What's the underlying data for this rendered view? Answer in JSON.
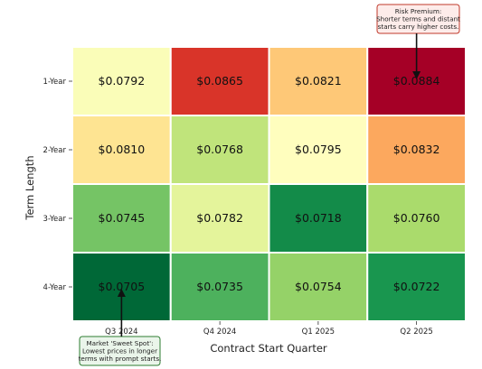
{
  "chart_data": {
    "type": "heatmap",
    "xlabel": "Contract Start Quarter",
    "ylabel": "Term Length",
    "x_categories": [
      "Q3 2024",
      "Q4 2024",
      "Q1 2025",
      "Q2 2025"
    ],
    "y_categories": [
      "1-Year",
      "2-Year",
      "3-Year",
      "4-Year"
    ],
    "values": [
      [
        0.0792,
        0.0865,
        0.0821,
        0.0884
      ],
      [
        0.081,
        0.0768,
        0.0795,
        0.0832
      ],
      [
        0.0745,
        0.0782,
        0.0718,
        0.076
      ],
      [
        0.0705,
        0.0735,
        0.0754,
        0.0722
      ]
    ],
    "value_labels": [
      [
        "$0.0792",
        "$0.0865",
        "$0.0821",
        "$0.0884"
      ],
      [
        "$0.0810",
        "$0.0768",
        "$0.0795",
        "$0.0832"
      ],
      [
        "$0.0745",
        "$0.0782",
        "$0.0718",
        "$0.0760"
      ],
      [
        "$0.0705",
        "$0.0735",
        "$0.0754",
        "$0.0722"
      ]
    ],
    "colormap": "RdYlGn_r",
    "colormap_stops": [
      "#006837",
      "#1a9850",
      "#66bd63",
      "#a6d96a",
      "#d9ef8b",
      "#ffffbf",
      "#fee08b",
      "#fdae61",
      "#f46d43",
      "#d73027",
      "#a50026"
    ],
    "value_range": [
      0.0705,
      0.0884
    ],
    "annotations": [
      {
        "lines": [
          "Risk Premium:",
          "Shorter terms and distant",
          "starts carry higher costs."
        ],
        "target_row": 0,
        "target_col": 3,
        "box_edge": "#c0392b",
        "box_fill": "#fdecea"
      },
      {
        "lines": [
          "Market 'Sweet Spot':",
          "Lowest prices in longer",
          "terms with prompt starts."
        ],
        "target_row": 3,
        "target_col": 0,
        "box_edge": "#2e7d32",
        "box_fill": "#eaf5ea"
      }
    ]
  }
}
